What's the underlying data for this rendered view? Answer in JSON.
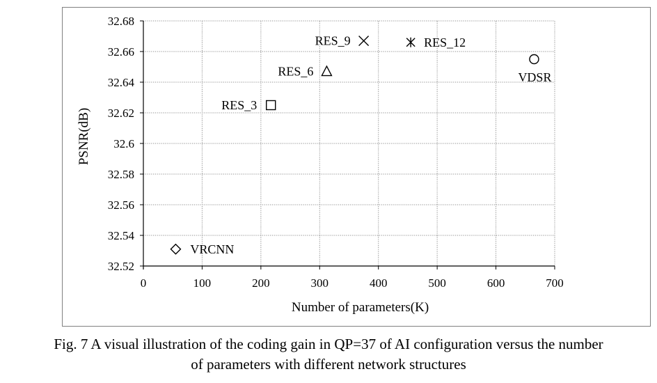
{
  "chart_data": {
    "type": "scatter",
    "xlabel": "Number of parameters(K)",
    "ylabel": "PSNR(dB)",
    "xlim": [
      0,
      700
    ],
    "ylim": [
      32.52,
      32.68
    ],
    "x_ticks": [
      "0",
      "100",
      "200",
      "300",
      "400",
      "500",
      "600",
      "700"
    ],
    "y_ticks": [
      "32.52",
      "32.54",
      "32.56",
      "32.58",
      "32.6",
      "32.62",
      "32.64",
      "32.66",
      "32.68"
    ],
    "grid": true,
    "legend": "none",
    "points": [
      {
        "label": "VRCNN",
        "x": 55,
        "y": 32.531,
        "marker": "diamond"
      },
      {
        "label": "RES_3",
        "x": 217,
        "y": 32.625,
        "marker": "square"
      },
      {
        "label": "RES_6",
        "x": 312,
        "y": 32.647,
        "marker": "triangle"
      },
      {
        "label": "RES_9",
        "x": 375,
        "y": 32.667,
        "marker": "x"
      },
      {
        "label": "RES_12",
        "x": 455,
        "y": 32.666,
        "marker": "asterisk"
      },
      {
        "label": "VDSR",
        "x": 665,
        "y": 32.655,
        "marker": "circle"
      }
    ]
  },
  "caption": {
    "line1": "Fig. 7 A visual illustration of the coding gain in QP=37 of AI configuration versus the number",
    "line2": "of parameters with different network structures"
  }
}
